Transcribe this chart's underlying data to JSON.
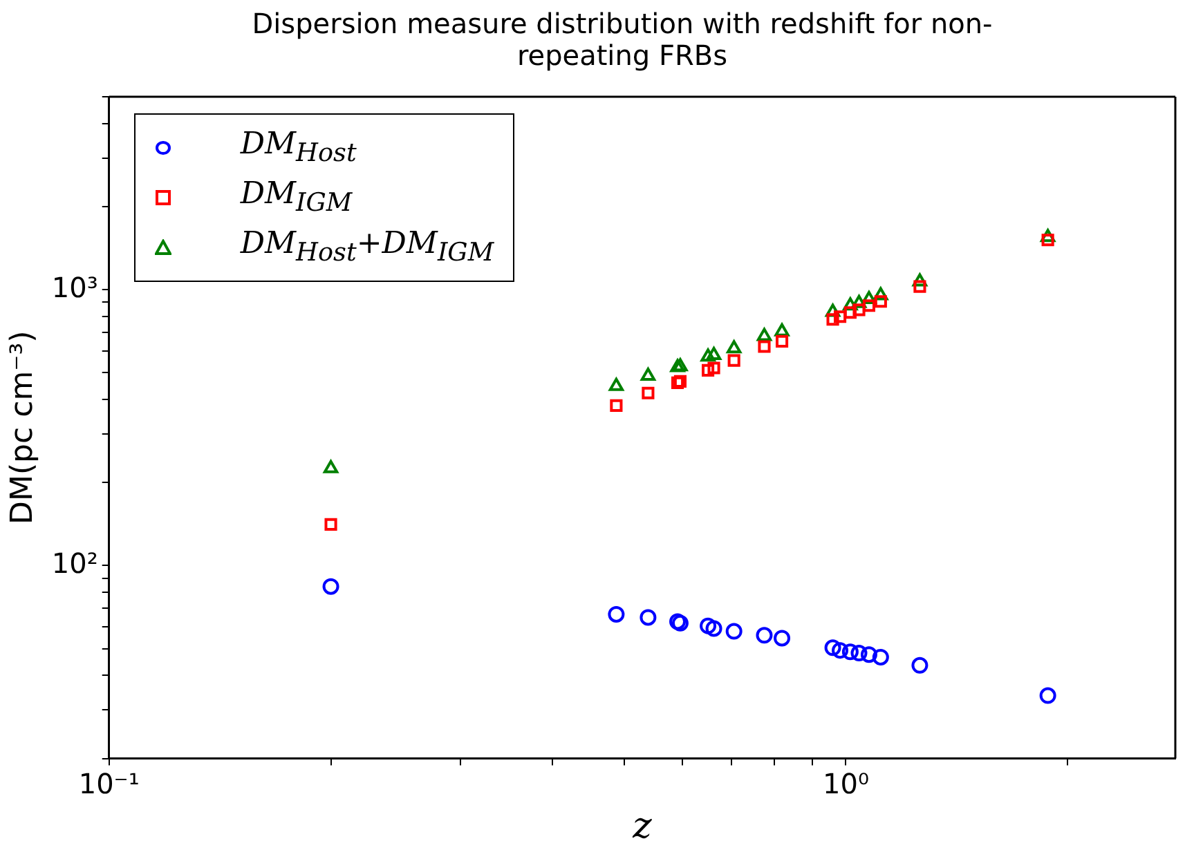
{
  "chart_data": {
    "type": "scatter",
    "title": "Dispersion measure distribution with redshift for non-repeating FRBs",
    "xlabel": "z",
    "ylabel": "DM(pc cm⁻³)",
    "log": "xy",
    "grid": false,
    "legend": "top left",
    "x": [
      0.2,
      0.488,
      0.539,
      0.591,
      0.596,
      0.65,
      0.662,
      0.705,
      0.775,
      0.819,
      0.96,
      0.982,
      1.014,
      1.042,
      1.075,
      1.115,
      1.26,
      1.88
    ],
    "xlim": [
      0.1,
      2.8
    ],
    "xticks": [
      {
        "value": 0.1,
        "label": "10⁻¹"
      },
      {
        "value": 0.2,
        "label": null
      },
      {
        "value": 0.3,
        "label": null
      },
      {
        "value": 0.4,
        "label": null
      },
      {
        "value": 0.5,
        "label": null
      },
      {
        "value": 0.6,
        "label": null
      },
      {
        "value": 0.7,
        "label": null
      },
      {
        "value": 0.8,
        "label": null
      },
      {
        "value": 0.9,
        "label": null
      },
      {
        "value": 1,
        "label": "10⁰"
      },
      {
        "value": 2,
        "label": null
      }
    ],
    "ylim": [
      20,
      5000
    ],
    "yticks": [
      {
        "value": 20,
        "label": null
      },
      {
        "value": 30,
        "label": null
      },
      {
        "value": 40,
        "label": null
      },
      {
        "value": 50,
        "label": null
      },
      {
        "value": 60,
        "label": null
      },
      {
        "value": 70,
        "label": null
      },
      {
        "value": 80,
        "label": null
      },
      {
        "value": 90,
        "label": null
      },
      {
        "value": 100,
        "label": "10²"
      },
      {
        "value": 200,
        "label": null
      },
      {
        "value": 300,
        "label": null
      },
      {
        "value": 400,
        "label": null
      },
      {
        "value": 500,
        "label": null
      },
      {
        "value": 600,
        "label": null
      },
      {
        "value": 700,
        "label": null
      },
      {
        "value": 800,
        "label": null
      },
      {
        "value": 900,
        "label": null
      },
      {
        "value": 1000,
        "label": "10³"
      },
      {
        "value": 2000,
        "label": null
      },
      {
        "value": 3000,
        "label": null
      },
      {
        "value": 4000,
        "label": null
      },
      {
        "value": 5000,
        "label": null
      }
    ],
    "series": [
      {
        "name": "DM$_{Host}$",
        "color": "#0000ff",
        "marker": "circle",
        "values": [
          84,
          66.6,
          64.9,
          62.7,
          61.9,
          60.5,
          59.2,
          57.8,
          55.9,
          54.6,
          50.4,
          49.3,
          48.7,
          48.2,
          47.6,
          46.6,
          43.5,
          33.8
        ]
      },
      {
        "name": "DM$_{IGM}$",
        "color": "#ff0000",
        "marker": "square",
        "values": [
          141,
          380,
          422,
          460,
          465,
          510,
          520,
          554,
          622,
          650,
          780,
          798,
          826,
          845,
          875,
          906,
          1026,
          1514
        ]
      },
      {
        "name": "DM$_{Host}$+DM$_{IGM}$",
        "color": "#008000",
        "marker": "triangle",
        "values": [
          225,
          447,
          487,
          523,
          527,
          571,
          579,
          612,
          678,
          705,
          830,
          null,
          875,
          893,
          923,
          953,
          1070,
          1548
        ]
      }
    ]
  }
}
